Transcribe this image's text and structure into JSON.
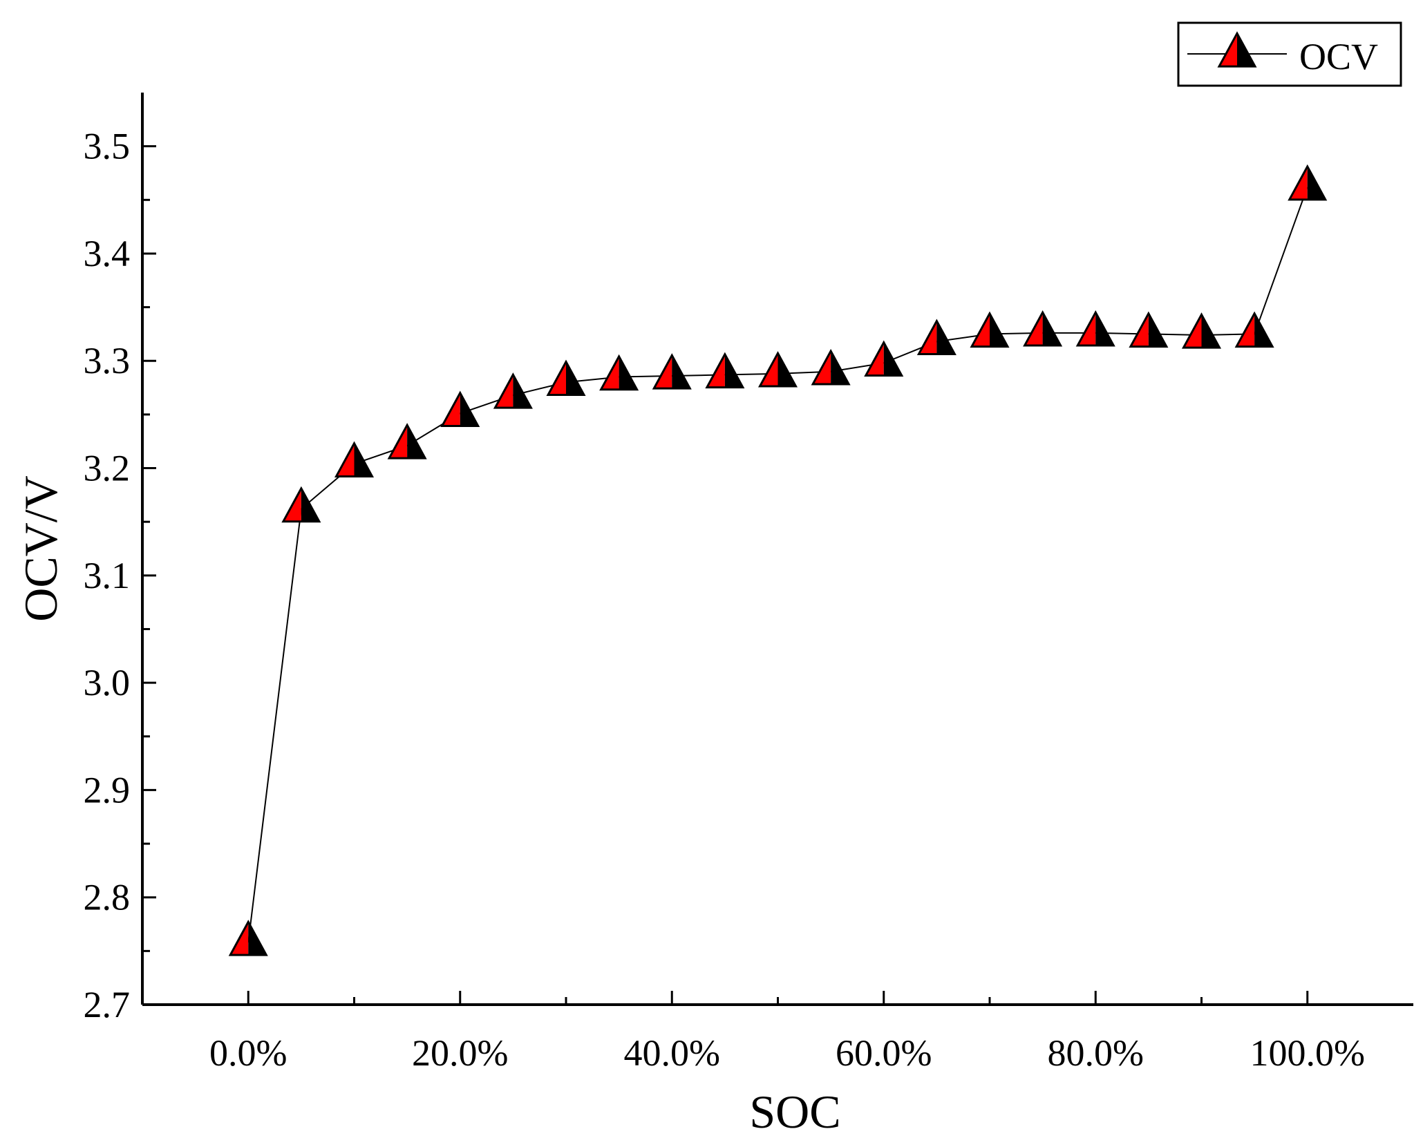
{
  "chart_data": {
    "type": "line",
    "xlabel": "SOC",
    "ylabel": "OCV/V",
    "xlim": [
      -0.1,
      1.1
    ],
    "ylim": [
      2.7,
      3.55
    ],
    "x_ticks": [
      0.0,
      0.2,
      0.4,
      0.6,
      0.8,
      1.0
    ],
    "x_tick_labels": [
      "0.0%",
      "20.0%",
      "40.0%",
      "60.0%",
      "80.0%",
      "100.0%"
    ],
    "y_ticks": [
      2.7,
      2.8,
      2.9,
      3.0,
      3.1,
      3.2,
      3.3,
      3.4,
      3.5
    ],
    "y_tick_labels": [
      "2.7",
      "2.8",
      "2.9",
      "3.0",
      "3.1",
      "3.2",
      "3.3",
      "3.4",
      "3.5"
    ],
    "grid": false,
    "legend_position": "top-right",
    "colors": {
      "marker_fill": "#ff0000",
      "marker_shadow": "#000000",
      "line": "#000000"
    },
    "series": [
      {
        "name": "OCV",
        "marker": "triangle",
        "x": [
          0.0,
          0.05,
          0.1,
          0.15,
          0.2,
          0.25,
          0.3,
          0.35,
          0.4,
          0.45,
          0.5,
          0.55,
          0.6,
          0.65,
          0.7,
          0.75,
          0.8,
          0.85,
          0.9,
          0.95,
          1.0
        ],
        "y": [
          2.758,
          3.162,
          3.204,
          3.221,
          3.251,
          3.268,
          3.28,
          3.285,
          3.286,
          3.287,
          3.288,
          3.29,
          3.298,
          3.318,
          3.325,
          3.326,
          3.326,
          3.325,
          3.324,
          3.325,
          3.462
        ]
      }
    ]
  }
}
